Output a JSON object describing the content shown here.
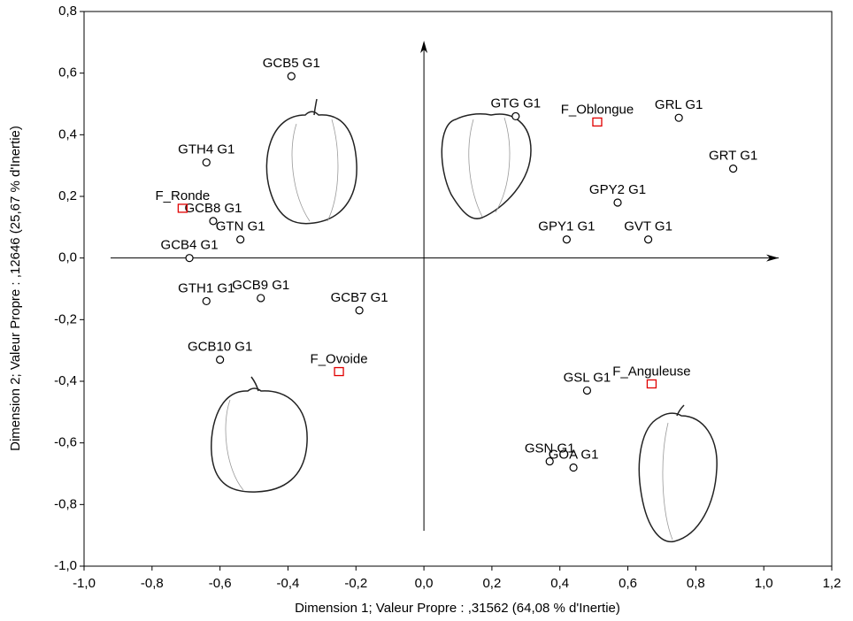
{
  "chart_data": {
    "type": "scatter",
    "xlabel": "Dimension 1; Valeur Propre : ,31562 (64,08  % d'Inertie)",
    "ylabel": "Dimension 2; Valeur Propre : ,12646 (25,67  % d'Inertie)",
    "xlim": [
      -1.0,
      1.2
    ],
    "ylim": [
      -1.0,
      0.8
    ],
    "xticks": [
      {
        "value": -1.0,
        "label": "-1,0"
      },
      {
        "value": -0.8,
        "label": "-0,8"
      },
      {
        "value": -0.6,
        "label": "-0,6"
      },
      {
        "value": -0.4,
        "label": "-0,4"
      },
      {
        "value": -0.2,
        "label": "-0,2"
      },
      {
        "value": 0,
        "label": "0,0"
      },
      {
        "value": 0.2,
        "label": "0,2"
      },
      {
        "value": 0.4,
        "label": "0,4"
      },
      {
        "value": 0.6,
        "label": "0,6"
      },
      {
        "value": 0.8,
        "label": "0,8"
      },
      {
        "value": 1.0,
        "label": "1,0"
      },
      {
        "value": 1.2,
        "label": "1,2"
      }
    ],
    "yticks": [
      {
        "value": -1.0,
        "label": "-1,0"
      },
      {
        "value": -0.8,
        "label": "-0,8"
      },
      {
        "value": -0.6,
        "label": "-0,6"
      },
      {
        "value": -0.4,
        "label": "-0,4"
      },
      {
        "value": -0.2,
        "label": "-0,2"
      },
      {
        "value": 0,
        "label": "0,0"
      },
      {
        "value": 0.2,
        "label": "0,2"
      },
      {
        "value": 0.4,
        "label": "0,4"
      },
      {
        "value": 0.6,
        "label": "0,6"
      },
      {
        "value": 0.8,
        "label": "0,8"
      }
    ],
    "series": [
      {
        "color": "#000000",
        "marker": "circle",
        "labels": [
          "GCB5 G1",
          "GTG G1",
          "GRL G1",
          "GRT G1",
          "GTH4 G1",
          "GPY2 G1",
          "GCB8 G1",
          "GTN G1",
          "GPY1 G1",
          "GVT G1",
          "GCB4 G1",
          "GTH1 G1",
          "GCB9 G1",
          "GCB7 G1",
          "GCB10 G1",
          "GSL G1",
          "GSN G1",
          "GOA G1"
        ],
        "x": [
          -0.39,
          0.27,
          0.75,
          0.91,
          -0.64,
          0.57,
          -0.62,
          -0.54,
          0.42,
          0.66,
          -0.69,
          -0.64,
          -0.48,
          -0.19,
          -0.6,
          0.48,
          0.37,
          0.44
        ],
        "y": [
          0.59,
          0.46,
          0.455,
          0.29,
          0.31,
          0.18,
          0.12,
          0.06,
          0.06,
          0.06,
          0.0,
          -0.14,
          -0.13,
          -0.17,
          -0.33,
          -0.43,
          -0.66,
          -0.68
        ]
      },
      {
        "color": "#e00000",
        "marker": "square",
        "labels": [
          "F_Oblongue",
          "F_Ronde",
          "F_Ovoide",
          "F_Anguleuse"
        ],
        "x": [
          0.51,
          -0.71,
          -0.25,
          0.67
        ],
        "y": [
          0.44,
          0.16,
          -0.37,
          -0.41
        ]
      }
    ]
  }
}
